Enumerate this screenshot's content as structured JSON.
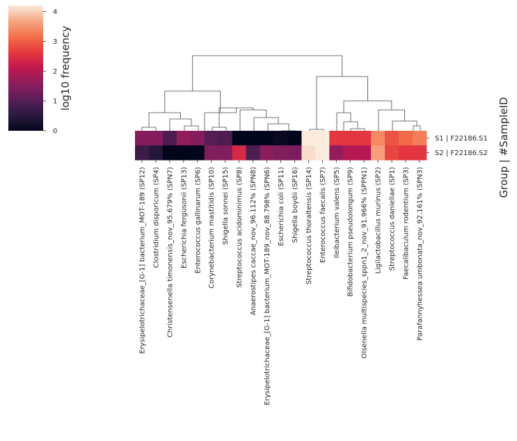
{
  "chart_data": {
    "type": "heatmap",
    "title": "",
    "colorbar": {
      "label": "log10 frequency",
      "min": 0,
      "max": 4.2,
      "ticks": [
        "0",
        "1",
        "2",
        "3",
        "4"
      ],
      "colormap": "rocket"
    },
    "ylabel": "Group | #SampleID",
    "rows": [
      "S1 | F22186.S1",
      "S2 | F22186.S2"
    ],
    "columns": [
      "Erysipelotrichaceae_[G-1] bacterium_MOT-189 (SP12)",
      "Clostridium disporicum (SP4)",
      "Christensenella timonensis_nov_95.679% (SPN7)",
      "Escherichia fergusonii (SP13)",
      "Enterococcus gallinarum (SP6)",
      "Corynebacterium mastitidis (SP10)",
      "Shigella sonnei (SP15)",
      "Streptococcus acidominimus (SP8)",
      "Anaerostipes caccae_nov_96.112% (SPN8)",
      "Erysipelotrichaceae_[G-1] bacterium_MOT-189_nov_88.798% (SPN6)",
      "Escherichia coli (SP11)",
      "Shigella boydii (SP16)",
      "Streptococcus thoraltensis (SP14)",
      "Enterococcus faecalis (SP7)",
      "Ileibacterium valens (SP5)",
      "Bifidobacterium pseudolongum (SP9)",
      "Olsenella multispecies_sppn1_2_nov_91.966% (SPPN1)",
      "Ligilactobacillus murinus (SP2)",
      "Streptococcus danieliae (SP1)",
      "Faecalibaculum rodentium (SP3)",
      "Parafannyhessea umbonata_nov_92.161% (SPN3)"
    ],
    "values": [
      [
        1.5,
        1.5,
        0.9,
        1.65,
        1.5,
        1.0,
        0.9,
        0.0,
        0.0,
        0.0,
        0.1,
        0.0,
        4.2,
        4.2,
        2.6,
        2.6,
        2.6,
        3.4,
        2.9,
        3.1,
        3.3
      ],
      [
        0.7,
        0.45,
        0.0,
        0.0,
        0.0,
        1.45,
        1.45,
        2.4,
        0.9,
        1.55,
        1.45,
        1.4,
        4.1,
        4.2,
        1.65,
        2.0,
        2.0,
        3.6,
        2.75,
        2.6,
        2.6
      ]
    ],
    "dendrogram_order": "columns clustered"
  }
}
